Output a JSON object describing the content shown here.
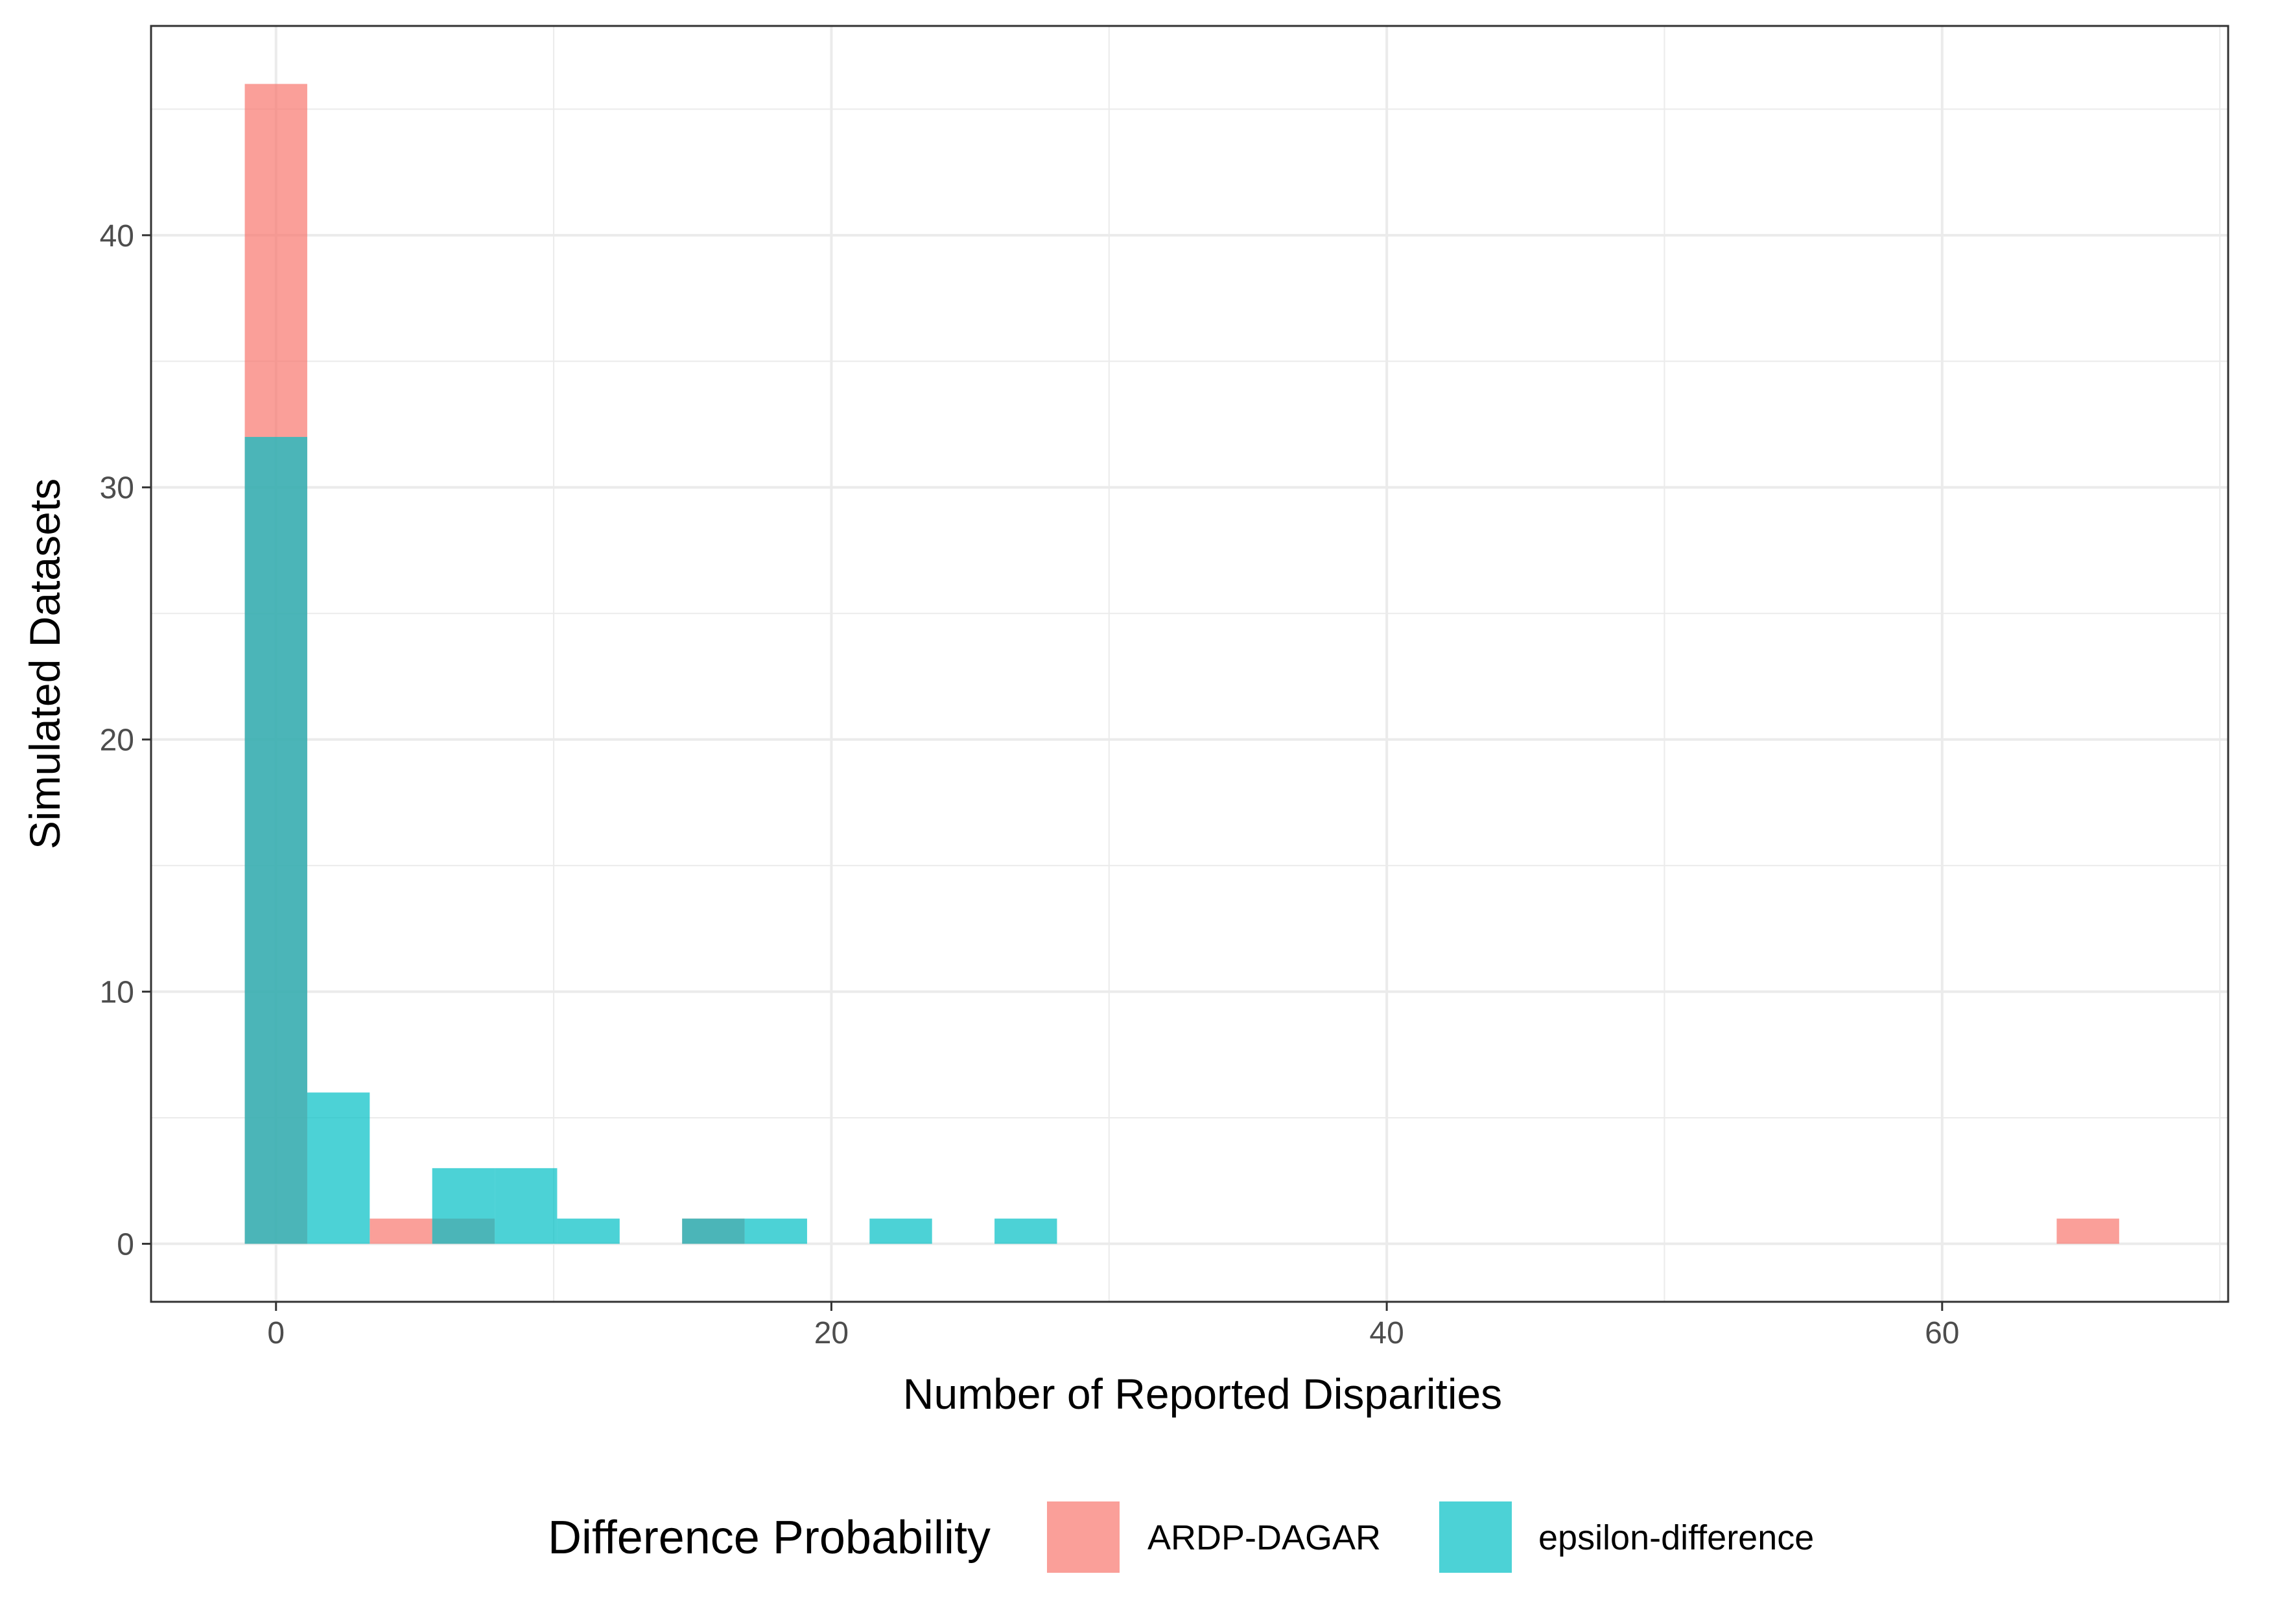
{
  "chart_data": {
    "type": "bar",
    "subtype": "overlaid histogram",
    "xlabel": "Number of Reported Disparities",
    "ylabel": "Simulated Datasets",
    "xlim": [
      -4.5,
      70.3
    ],
    "ylim": [
      -2.3,
      48.3
    ],
    "x_ticks": [
      0,
      20,
      40,
      60
    ],
    "y_ticks": [
      0,
      10,
      20,
      30,
      40
    ],
    "bin_width": 2.25,
    "bin_start": -1.125,
    "grid": true,
    "bar_opacity": 0.7,
    "legend": {
      "title": "Difference Probability",
      "position": "bottom",
      "entries": [
        {
          "label": "ARDP-DAGAR",
          "color": "#F8766D"
        },
        {
          "label": "epsilon-difference",
          "color": "#00BFC4"
        }
      ]
    },
    "series": [
      {
        "name": "ARDP-DAGAR",
        "color": "#F8766D",
        "bins": [
          {
            "x_center": 0,
            "count": 46
          },
          {
            "x_center": 4.5,
            "count": 1
          },
          {
            "x_center": 6.75,
            "count": 1
          },
          {
            "x_center": 15.75,
            "count": 1
          },
          {
            "x_center": 65.25,
            "count": 1
          }
        ]
      },
      {
        "name": "epsilon-difference",
        "color": "#00BFC4",
        "bins": [
          {
            "x_center": 0,
            "count": 32
          },
          {
            "x_center": 2.25,
            "count": 6
          },
          {
            "x_center": 6.75,
            "count": 3
          },
          {
            "x_center": 9,
            "count": 3
          },
          {
            "x_center": 11.25,
            "count": 1
          },
          {
            "x_center": 15.75,
            "count": 1
          },
          {
            "x_center": 18,
            "count": 1
          },
          {
            "x_center": 22.5,
            "count": 1
          },
          {
            "x_center": 27,
            "count": 1
          }
        ]
      }
    ]
  }
}
